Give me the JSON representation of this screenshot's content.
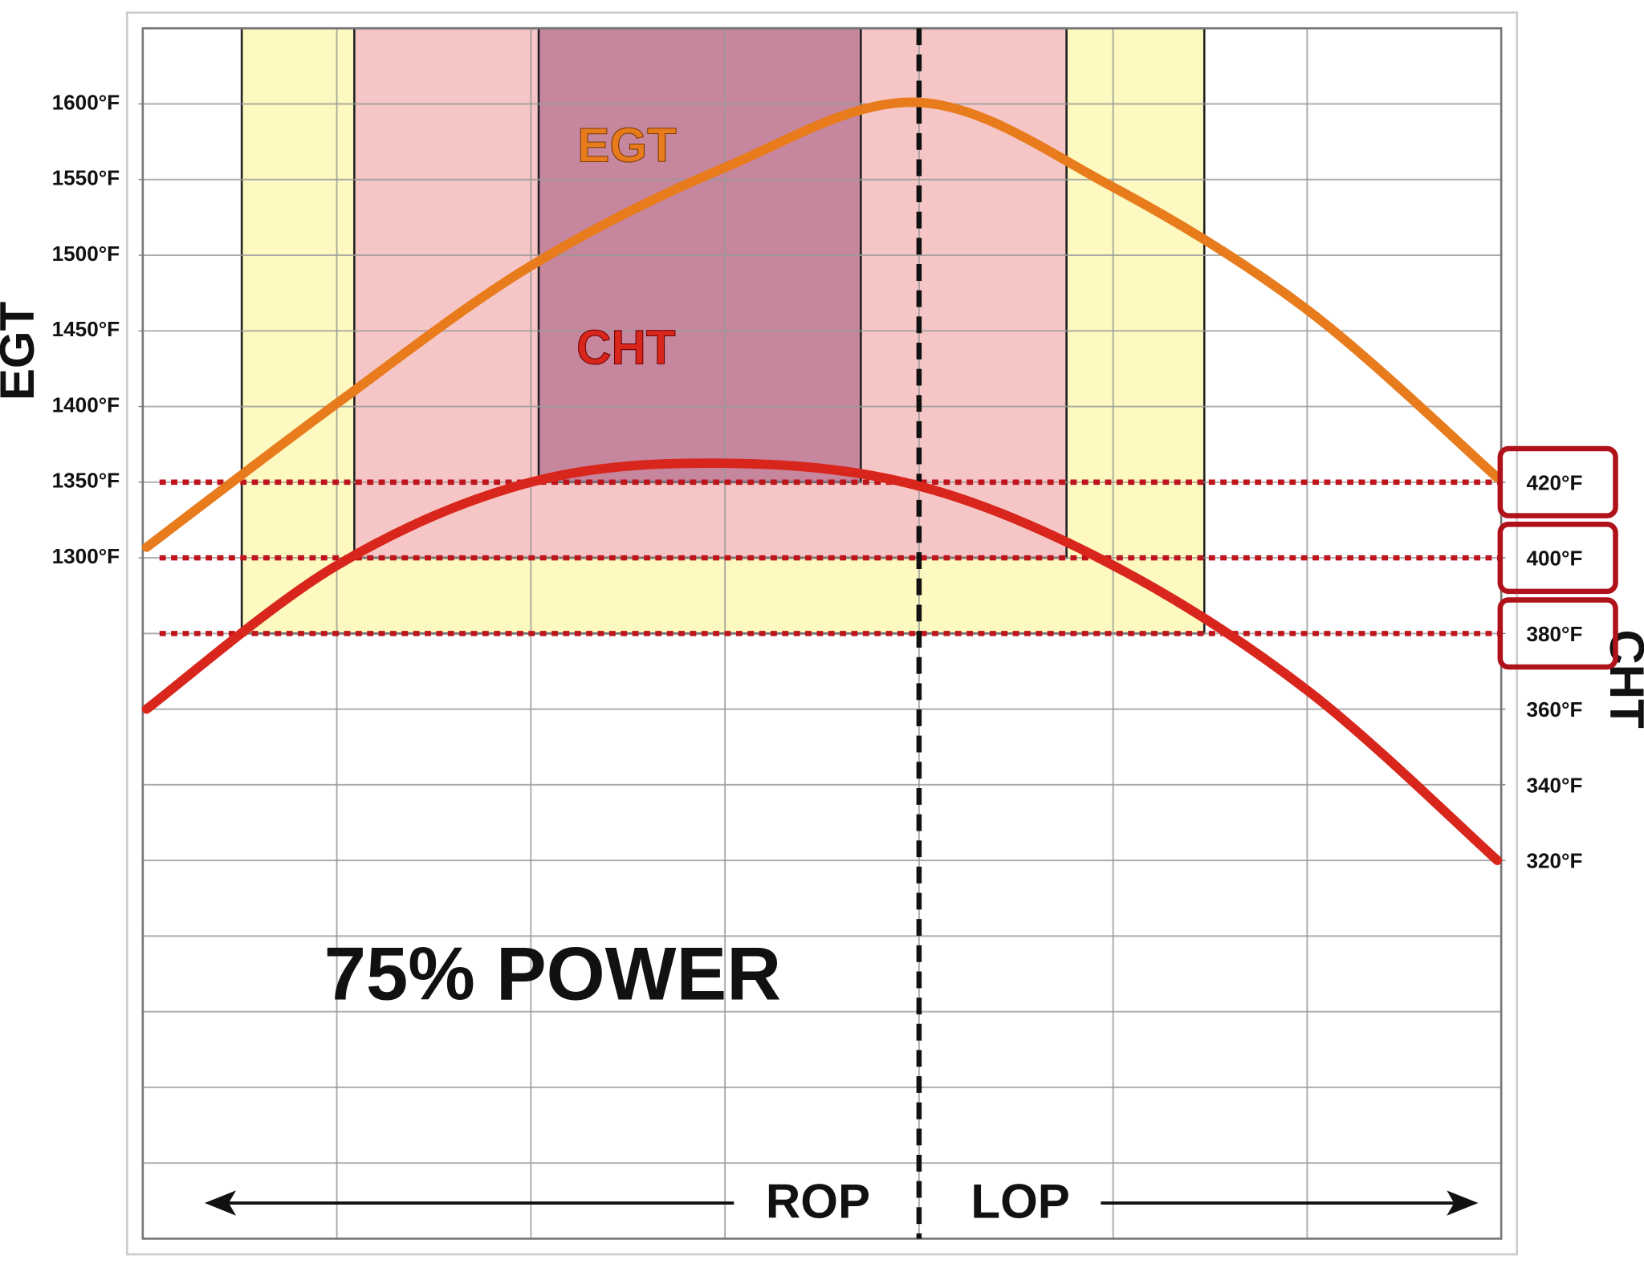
{
  "chart_data": {
    "type": "line",
    "x": [
      0.02,
      1,
      2,
      3,
      4,
      5,
      6,
      6.98
    ],
    "xlim": [
      0,
      7
    ],
    "series": [
      {
        "name": "EGT",
        "color": "#e87b1c",
        "values": [
          1307,
          1402,
          1493,
          1558,
          1601,
          1545,
          1464,
          1353
        ]
      },
      {
        "name": "CHT",
        "color": "#d9261c",
        "axis": "y2",
        "values": [
          360,
          398,
          420,
          425,
          419,
          398,
          365,
          320
        ]
      }
    ],
    "ylim": [
      850,
      1650
    ],
    "yticks": [
      {
        "value": 1300,
        "label": "1300°F"
      },
      {
        "value": 1350,
        "label": "1350°F"
      },
      {
        "value": 1400,
        "label": "1400°F"
      },
      {
        "value": 1450,
        "label": "1450°F"
      },
      {
        "value": 1500,
        "label": "1500°F"
      },
      {
        "value": 1550,
        "label": "1550°F"
      },
      {
        "value": 1600,
        "label": "1600°F"
      }
    ],
    "y2lim": [
      220,
      540
    ],
    "y2ticks": [
      {
        "value": 320,
        "label": "320°F"
      },
      {
        "value": 340,
        "label": "340°F"
      },
      {
        "value": 360,
        "label": "360°F"
      },
      {
        "value": 380,
        "label": "380°F"
      },
      {
        "value": 400,
        "label": "400°F"
      },
      {
        "value": 420,
        "label": "420°F"
      }
    ],
    "ylabel": "EGT",
    "y2label": "CHT",
    "grid": true,
    "zones": [
      {
        "color": "#fdf9c0",
        "xlim": [
          0.51,
          5.47
        ],
        "y2lim": [
          380,
          540
        ]
      },
      {
        "color": "#f6c6c6",
        "xlim": [
          1.09,
          4.76
        ],
        "y2lim": [
          400,
          540
        ]
      },
      {
        "color": "#c5869e",
        "xlim": [
          2.04,
          3.7
        ],
        "y2lim": [
          420,
          540
        ]
      }
    ],
    "peak_x": 4,
    "annotations": {
      "egt": "EGT",
      "cht": "CHT",
      "power": "75% POWER",
      "rop": "ROP",
      "lop": "LOP"
    }
  }
}
